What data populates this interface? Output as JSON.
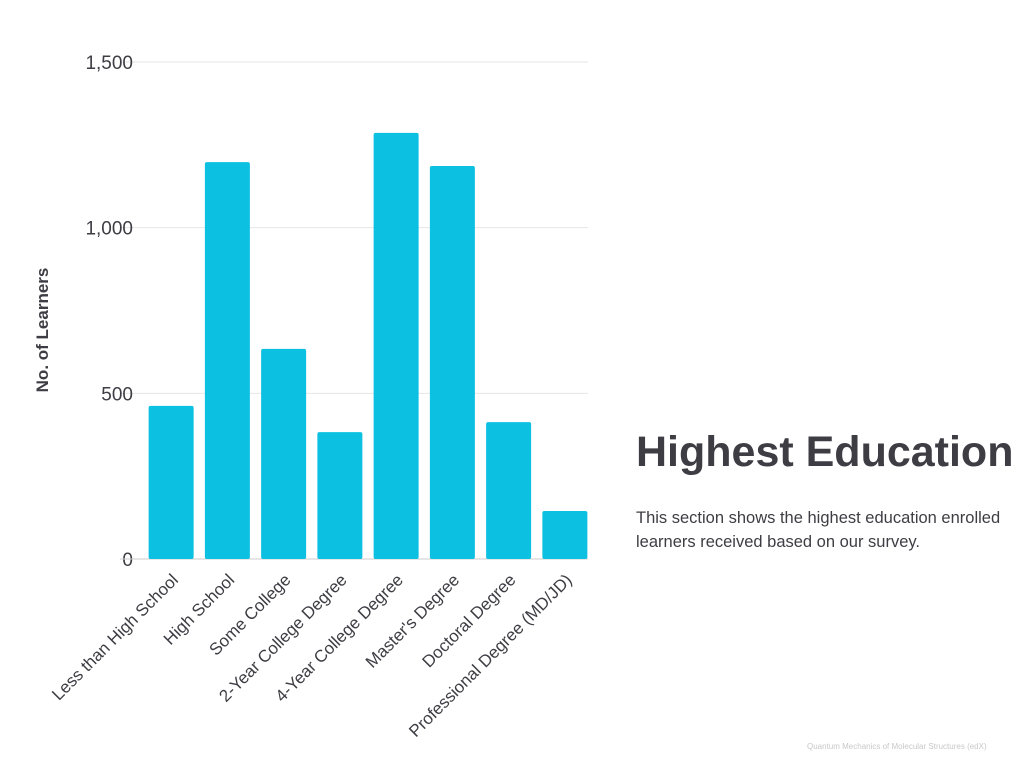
{
  "section": {
    "title": "Highest Education",
    "description": "This section shows the highest education enrolled learners received based on our survey."
  },
  "footer": "Quantum Mechanics of Molecular Structures (edX)",
  "colors": {
    "bar": "#0bc0e0",
    "text": "#3f3d44",
    "grid": "#e6e6e6"
  },
  "chart_data": {
    "type": "bar",
    "title": "",
    "xlabel": "",
    "ylabel": "No. of Learners",
    "ylim": [
      0,
      1500
    ],
    "yticks": [
      0,
      500,
      1000,
      1500
    ],
    "ytick_labels": [
      "0",
      "500",
      "1,000",
      "1,500"
    ],
    "grid": true,
    "categories": [
      "Less than High School",
      "High School",
      "Some College",
      "2-Year College Degree",
      "4-Year College Degree",
      "Master's Degree",
      "Doctoral Degree",
      "Professional Degree (MD/JD)"
    ],
    "values": [
      462,
      1198,
      634,
      383,
      1286,
      1186,
      413,
      145
    ]
  }
}
